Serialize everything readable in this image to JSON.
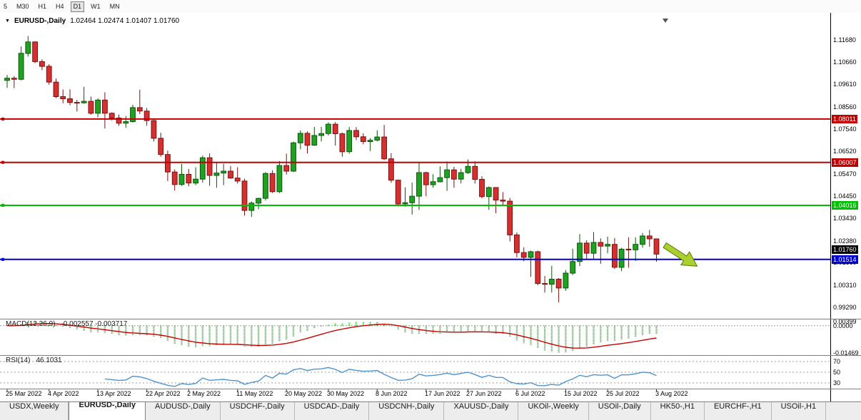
{
  "toolbar": {
    "timeframes": [
      "5",
      "M30",
      "H1",
      "H4",
      "D1",
      "W1",
      "MN"
    ],
    "active_timeframe": "D1"
  },
  "chart": {
    "title": "EURUSD-,Daily",
    "ohlc_text": "1.02464 1.02474 1.01407 1.01760",
    "y_ticks": [
      "1.11680",
      "1.10660",
      "1.09610",
      "1.08560",
      "1.07540",
      "1.06520",
      "1.05470",
      "1.04450",
      "1.03430",
      "1.02380",
      "1.01360",
      "1.00310",
      "0.99290"
    ],
    "hlines": [
      {
        "label": "1.08011",
        "price": 1.08011,
        "color": "#C00000",
        "role": "resistance"
      },
      {
        "label": "1.06007",
        "price": 1.06007,
        "color": "#C00000",
        "role": "resistance"
      },
      {
        "label": "1.04016",
        "price": 1.04016,
        "color": "#00BE00",
        "role": "support"
      },
      {
        "label": "1.01514",
        "price": 1.01514,
        "color": "#0000D0",
        "role": "support"
      }
    ],
    "current_price": {
      "label": "1.01760",
      "price": 1.0176,
      "bg": "#000000"
    },
    "arrow": {
      "direction": "down-right",
      "fill": "#AACF2F",
      "stroke": "#5A7A00"
    },
    "colors": {
      "up": "#21A121",
      "up_border": "#0A570A",
      "down": "#D53030",
      "down_border": "#7E1010",
      "macd_hist": "#2EB82E",
      "macd_signal": "#CC0000",
      "rsi": "#4F94CD",
      "level_line": "#9A9A9A"
    }
  },
  "macd": {
    "label": "MACD(12,26,9)",
    "values_text": "-0.002557 -0.003717",
    "axis": [
      "0.00399",
      "0.0000",
      "-0.01469"
    ]
  },
  "rsi": {
    "label": "RSI(14)",
    "value": "46.1031",
    "levels": [
      70,
      50,
      30
    ]
  },
  "tabs": [
    {
      "label": "USDX,Weekly",
      "active": false
    },
    {
      "label": "EURUSD-,Daily",
      "active": true
    },
    {
      "label": "AUDUSD-,Daily",
      "active": false
    },
    {
      "label": "USDCHF-,Daily",
      "active": false
    },
    {
      "label": "USDCAD-,Daily",
      "active": false
    },
    {
      "label": "USDCNH-,Daily",
      "active": false
    },
    {
      "label": "XAUUSD-,Daily",
      "active": false
    },
    {
      "label": "UKOil-,Weekly",
      "active": false
    },
    {
      "label": "USOil-,Daily",
      "active": false
    },
    {
      "label": "HK50-,H1",
      "active": false
    },
    {
      "label": "EURCHF-,H1",
      "active": false
    },
    {
      "label": "USOil-,H1",
      "active": false
    }
  ],
  "chart_data": {
    "type": "candlestick",
    "symbol": "EURUSD",
    "timeframe": "Daily",
    "ylim": [
      0.989,
      1.1235
    ],
    "x_tick_labels": [
      "25 Mar 2022",
      "4 Apr 2022",
      "13 Apr 2022",
      "22 Apr 2022",
      "2 May 2022",
      "11 May 2022",
      "20 May 2022",
      "30 May 2022",
      "8 Jun 2022",
      "17 Jun 2022",
      "27 Jun 2022",
      "6 Jul 2022",
      "15 Jul 2022",
      "25 Jul 2022",
      "3 Aug 2022"
    ],
    "x_tick_indices": [
      0,
      6,
      13,
      20,
      26,
      33,
      40,
      46,
      53,
      60,
      66,
      73,
      80,
      86,
      93
    ],
    "indicators": {
      "macd": {
        "fast": 12,
        "slow": 26,
        "signal": 9,
        "last_main": -0.002557,
        "last_signal": -0.003717
      },
      "rsi": {
        "period": 14,
        "last": 46.1031
      }
    },
    "ohlc": [
      [
        1.098,
        1.1005,
        1.0945,
        1.099
      ],
      [
        1.099,
        1.1,
        1.0944,
        1.0985
      ],
      [
        1.0985,
        1.1137,
        1.098,
        1.1105
      ],
      [
        1.1105,
        1.1185,
        1.109,
        1.1158
      ],
      [
        1.1158,
        1.116,
        1.106,
        1.1067
      ],
      [
        1.1067,
        1.1077,
        1.1027,
        1.1045
      ],
      [
        1.1045,
        1.1055,
        1.096,
        1.0972
      ],
      [
        1.0972,
        1.0988,
        1.0898,
        1.0905
      ],
      [
        1.0905,
        1.0938,
        1.0874,
        1.0895
      ],
      [
        1.0895,
        1.0939,
        1.0865,
        1.0878
      ],
      [
        1.0878,
        1.089,
        1.0836,
        1.0876
      ],
      [
        1.0876,
        1.095,
        1.0872,
        1.0883
      ],
      [
        1.0883,
        1.0905,
        1.0821,
        1.0828
      ],
      [
        1.0828,
        1.0897,
        1.0809,
        1.0889
      ],
      [
        1.0889,
        1.0925,
        1.0757,
        1.0828
      ],
      [
        1.0828,
        1.0832,
        1.0795,
        1.0806
      ],
      [
        1.0806,
        1.0822,
        1.077,
        1.0782
      ],
      [
        1.0782,
        1.0815,
        1.0761,
        1.0789
      ],
      [
        1.0789,
        1.0867,
        1.0785,
        1.0854
      ],
      [
        1.0854,
        1.0937,
        1.0824,
        1.0838
      ],
      [
        1.0838,
        1.0852,
        1.077,
        1.0794
      ],
      [
        1.0794,
        1.08,
        1.0697,
        1.0712
      ],
      [
        1.0712,
        1.0738,
        1.0627,
        1.0637
      ],
      [
        1.0637,
        1.0655,
        1.0514,
        1.0556
      ],
      [
        1.0556,
        1.0568,
        1.047,
        1.0498
      ],
      [
        1.0498,
        1.0593,
        1.0492,
        1.0545
      ],
      [
        1.0545,
        1.057,
        1.049,
        1.0505
      ],
      [
        1.0505,
        1.0578,
        1.0495,
        1.0523
      ],
      [
        1.0523,
        1.0632,
        1.0507,
        1.0622
      ],
      [
        1.0622,
        1.0642,
        1.0492,
        1.054
      ],
      [
        1.054,
        1.0599,
        1.0483,
        1.0551
      ],
      [
        1.0551,
        1.0594,
        1.0495,
        1.056
      ],
      [
        1.056,
        1.0584,
        1.0524,
        1.0528
      ],
      [
        1.0528,
        1.0578,
        1.0503,
        1.0514
      ],
      [
        1.0514,
        1.0525,
        1.0354,
        1.0378
      ],
      [
        1.0378,
        1.042,
        1.0348,
        1.0412
      ],
      [
        1.0412,
        1.0437,
        1.0384,
        1.0434
      ],
      [
        1.0434,
        1.0556,
        1.0424,
        1.0549
      ],
      [
        1.0549,
        1.0564,
        1.0459,
        1.0465
      ],
      [
        1.0465,
        1.0607,
        1.0459,
        1.0586
      ],
      [
        1.0586,
        1.0641,
        1.0544,
        1.056
      ],
      [
        1.056,
        1.0697,
        1.0556,
        1.0691
      ],
      [
        1.0691,
        1.0748,
        1.0661,
        1.0735
      ],
      [
        1.0735,
        1.0744,
        1.0642,
        1.068
      ],
      [
        1.068,
        1.0765,
        1.0677,
        1.0725
      ],
      [
        1.0725,
        1.0765,
        1.0697,
        1.0734
      ],
      [
        1.0734,
        1.0786,
        1.0725,
        1.0777
      ],
      [
        1.0777,
        1.0787,
        1.0678,
        1.0733
      ],
      [
        1.0733,
        1.0739,
        1.0627,
        1.065
      ],
      [
        1.065,
        1.0764,
        1.0641,
        1.0748
      ],
      [
        1.0748,
        1.0764,
        1.0704,
        1.0719
      ],
      [
        1.0719,
        1.0735,
        1.0684,
        1.0697
      ],
      [
        1.0697,
        1.0713,
        1.0653,
        1.0703
      ],
      [
        1.0703,
        1.0749,
        1.0698,
        1.0718
      ],
      [
        1.0718,
        1.0774,
        1.0611,
        1.0617
      ],
      [
        1.0617,
        1.0643,
        1.0506,
        1.0518
      ],
      [
        1.0518,
        1.0521,
        1.0397,
        1.0408
      ],
      [
        1.0408,
        1.0485,
        1.0396,
        1.0414
      ],
      [
        1.0414,
        1.0507,
        1.0359,
        1.0444
      ],
      [
        1.0444,
        1.0601,
        1.0381,
        1.0553
      ],
      [
        1.0553,
        1.0557,
        1.0444,
        1.0497
      ],
      [
        1.0497,
        1.0546,
        1.0483,
        1.0511
      ],
      [
        1.0511,
        1.0582,
        1.0508,
        1.053
      ],
      [
        1.053,
        1.0605,
        1.0469,
        1.0566
      ],
      [
        1.0566,
        1.058,
        1.0483,
        1.0523
      ],
      [
        1.0523,
        1.0571,
        1.0503,
        1.0553
      ],
      [
        1.0553,
        1.0614,
        1.0547,
        1.0582
      ],
      [
        1.0582,
        1.0606,
        1.0503,
        1.0522
      ],
      [
        1.0522,
        1.0536,
        1.0434,
        1.0442
      ],
      [
        1.0442,
        1.0489,
        1.0381,
        1.0484
      ],
      [
        1.0484,
        1.0486,
        1.0365,
        1.0426
      ],
      [
        1.0426,
        1.0463,
        1.0405,
        1.0421
      ],
      [
        1.0421,
        1.0436,
        1.0235,
        1.0265
      ],
      [
        1.0265,
        1.0276,
        1.0161,
        1.0183
      ],
      [
        1.0183,
        1.0208,
        1.0143,
        1.0161
      ],
      [
        1.0161,
        1.0192,
        1.0071,
        1.0187
      ],
      [
        1.0187,
        1.0192,
        1.0032,
        1.004
      ],
      [
        1.004,
        1.0075,
        0.9998,
        1.0037
      ],
      [
        1.0037,
        1.0122,
        0.9998,
        1.006
      ],
      [
        1.006,
        1.0065,
        0.9952,
        1.0019
      ],
      [
        1.0019,
        1.0102,
        1.0006,
        1.0088
      ],
      [
        1.0088,
        1.0201,
        1.0079,
        1.0142
      ],
      [
        1.0142,
        1.0269,
        1.0121,
        1.0227
      ],
      [
        1.0227,
        1.024,
        1.0155,
        1.018
      ],
      [
        1.018,
        1.0278,
        1.0152,
        1.023
      ],
      [
        1.023,
        1.0249,
        1.0131,
        1.0213
      ],
      [
        1.0213,
        1.0257,
        1.018,
        1.0221
      ],
      [
        1.0221,
        1.025,
        1.0108,
        1.0115
      ],
      [
        1.0115,
        1.0205,
        1.0097,
        1.0199
      ],
      [
        1.0199,
        1.0254,
        1.0113,
        1.0196
      ],
      [
        1.0196,
        1.0254,
        1.0144,
        1.0221
      ],
      [
        1.0221,
        1.0274,
        1.0206,
        1.026
      ],
      [
        1.026,
        1.0288,
        1.021,
        1.02464
      ],
      [
        1.02464,
        1.02474,
        1.01407,
        1.0176
      ]
    ]
  }
}
